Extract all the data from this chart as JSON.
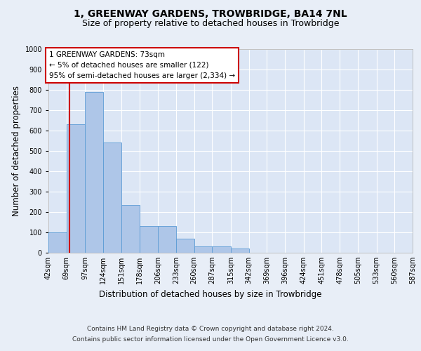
{
  "title": "1, GREENWAY GARDENS, TROWBRIDGE, BA14 7NL",
  "subtitle": "Size of property relative to detached houses in Trowbridge",
  "xlabel": "Distribution of detached houses by size in Trowbridge",
  "ylabel": "Number of detached properties",
  "bin_edges": [
    42,
    69,
    97,
    124,
    151,
    178,
    206,
    233,
    260,
    287,
    315,
    342,
    369,
    396,
    424,
    451,
    478,
    505,
    533,
    560,
    587
  ],
  "bar_heights": [
    100,
    630,
    790,
    540,
    235,
    130,
    130,
    70,
    30,
    30,
    20,
    0,
    0,
    0,
    0,
    0,
    0,
    0,
    0,
    0
  ],
  "bar_color": "#aec6e8",
  "bar_edge_color": "#5b9bd5",
  "background_color": "#e8eef7",
  "plot_bg_color": "#dce6f5",
  "grid_color": "#ffffff",
  "property_size": 73,
  "red_line_color": "#cc0000",
  "annotation_text": "1 GREENWAY GARDENS: 73sqm\n← 5% of detached houses are smaller (122)\n95% of semi-detached houses are larger (2,334) →",
  "annotation_box_color": "#cc0000",
  "ylim": [
    0,
    1000
  ],
  "yticks": [
    0,
    100,
    200,
    300,
    400,
    500,
    600,
    700,
    800,
    900,
    1000
  ],
  "footer_line1": "Contains HM Land Registry data © Crown copyright and database right 2024.",
  "footer_line2": "Contains public sector information licensed under the Open Government Licence v3.0.",
  "title_fontsize": 10,
  "subtitle_fontsize": 9,
  "tick_fontsize": 7,
  "ylabel_fontsize": 8.5,
  "xlabel_fontsize": 8.5
}
